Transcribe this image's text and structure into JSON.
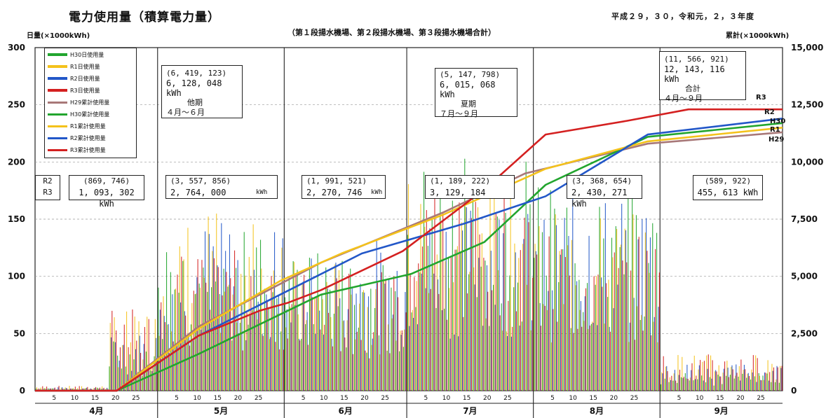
{
  "header": {
    "title": "電力使用量（積算電力量）",
    "subtitle": "（第１段揚水機場、第２段揚水機場、第３段揚水機場合計）",
    "years": "平成２９，３０，令和元，２，３年度",
    "y_left_label": "日量(×1000kWh)",
    "y_right_label": "累計(×1000kWh)"
  },
  "legend": [
    {
      "label": "H30日使用量",
      "color": "#22a52e",
      "kind": "bar"
    },
    {
      "label": "R1日使用量",
      "color": "#f4c21b",
      "kind": "bar"
    },
    {
      "label": "R2日使用量",
      "color": "#2257c8",
      "kind": "bar"
    },
    {
      "label": "R3日使用量",
      "color": "#d42020",
      "kind": "bar"
    },
    {
      "label": "H29累計使用量",
      "color": "#a87878",
      "kind": "line"
    },
    {
      "label": "H30累計使用量",
      "color": "#22a52e",
      "kind": "line"
    },
    {
      "label": "R1累計使用量",
      "color": "#f4c21b",
      "kind": "line"
    },
    {
      "label": "R2累計使用量",
      "color": "#2257c8",
      "kind": "line"
    },
    {
      "label": "R3累計使用量",
      "color": "#d42020",
      "kind": "line"
    }
  ],
  "annotations": {
    "r2r3": {
      "l1": "R2",
      "l2": "R3"
    },
    "apr": {
      "l1": "(869, 746)",
      "l2": "1, 093, 302 kWh"
    },
    "may": {
      "l1": "(3, 557, 856)",
      "l2": "2, 764, 000",
      "unit": "kWh"
    },
    "jun": {
      "l1": "(1, 991, 521)",
      "l2": "2, 270, 746",
      "unit": "kWh"
    },
    "jul": {
      "l1": "(1, 189, 222)",
      "l2": "3, 129, 184"
    },
    "aug": {
      "l1": "(3, 368, 654)",
      "l2": "2, 430, 271 kWh"
    },
    "sep": {
      "l1": "(589, 922)",
      "l2": "455, 613 kWh"
    },
    "other": {
      "l1": "(6, 419, 123)",
      "l2": "6, 128, 048  kWh",
      "l3": "他期",
      "l4": "４月～６月"
    },
    "summer": {
      "l1": "(5, 147, 798)",
      "l2": "6, 015, 068  kWh",
      "l3": "夏期",
      "l4": "７月～９月"
    },
    "total": {
      "l1": "(11, 566, 921)",
      "l2": "12, 143, 116  kWh",
      "l3": "合計",
      "l4": "４月～９月"
    }
  },
  "end_labels": {
    "r3": "R3",
    "r2": "R2",
    "h30": "H30",
    "r1": "R1",
    "h29": "H29"
  },
  "chart_data": {
    "type": "bar",
    "months": [
      "4月",
      "5月",
      "6月",
      "7月",
      "8月",
      "9月"
    ],
    "day_ticks": [
      "5",
      "10",
      "15",
      "20",
      "25"
    ],
    "y_left": {
      "label": "日量(×1000kWh)",
      "min": 0,
      "max": 300,
      "ticks": [
        "0",
        "50",
        "100",
        "150",
        "200",
        "250",
        "300"
      ]
    },
    "y_right": {
      "label": "累計(×1000kWh)",
      "min": 0,
      "max": 15000,
      "ticks": [
        "0",
        "2,500",
        "5,000",
        "7,500",
        "10,000",
        "12,500",
        "15,000"
      ]
    },
    "grid": true,
    "daily_series": [
      {
        "name": "H30日使用量",
        "color": "#22a52e",
        "monthly_level": [
          35,
          110,
          95,
          160,
          140,
          12
        ]
      },
      {
        "name": "R1日使用量",
        "color": "#f4c21b",
        "monthly_level": [
          55,
          120,
          90,
          145,
          120,
          25
        ]
      },
      {
        "name": "R2日使用量",
        "color": "#2257c8",
        "monthly_level": [
          40,
          115,
          105,
          130,
          135,
          20
        ]
      },
      {
        "name": "R3日使用量",
        "color": "#d42020",
        "monthly_level": [
          55,
          95,
          80,
          150,
          110,
          25
        ]
      }
    ],
    "cumulative_series": [
      {
        "name": "H29累計使用量",
        "color": "#a87878",
        "points": [
          [
            0,
            0
          ],
          [
            20,
            0
          ],
          [
            40,
            2800
          ],
          [
            70,
            5600
          ],
          [
            100,
            7800
          ],
          [
            120,
            9500
          ],
          [
            150,
            10800
          ],
          [
            183,
            11300
          ]
        ]
      },
      {
        "name": "H30累計使用量",
        "color": "#22a52e",
        "points": [
          [
            0,
            0
          ],
          [
            20,
            0
          ],
          [
            40,
            1600
          ],
          [
            70,
            4200
          ],
          [
            92,
            5100
          ],
          [
            110,
            6500
          ],
          [
            125,
            9000
          ],
          [
            150,
            11100
          ],
          [
            183,
            11700
          ]
        ]
      },
      {
        "name": "R1累計使用量",
        "color": "#f4c21b",
        "points": [
          [
            0,
            0
          ],
          [
            20,
            0
          ],
          [
            40,
            2700
          ],
          [
            60,
            4800
          ],
          [
            75,
            6000
          ],
          [
            100,
            7700
          ],
          [
            125,
            9700
          ],
          [
            150,
            10900
          ],
          [
            183,
            11500
          ]
        ]
      },
      {
        "name": "R2累計使用量",
        "color": "#2257c8",
        "points": [
          [
            0,
            0
          ],
          [
            20,
            0
          ],
          [
            40,
            2400
          ],
          [
            60,
            4200
          ],
          [
            80,
            6000
          ],
          [
            105,
            7300
          ],
          [
            125,
            8500
          ],
          [
            150,
            11200
          ],
          [
            183,
            11900
          ]
        ]
      },
      {
        "name": "R3累計使用量",
        "color": "#d42020",
        "points": [
          [
            0,
            0
          ],
          [
            20,
            0
          ],
          [
            40,
            2400
          ],
          [
            55,
            3500
          ],
          [
            62,
            3850
          ],
          [
            70,
            4400
          ],
          [
            90,
            6100
          ],
          [
            110,
            8800
          ],
          [
            125,
            11200
          ],
          [
            145,
            11800
          ],
          [
            160,
            12300
          ],
          [
            183,
            12300
          ]
        ]
      }
    ]
  }
}
